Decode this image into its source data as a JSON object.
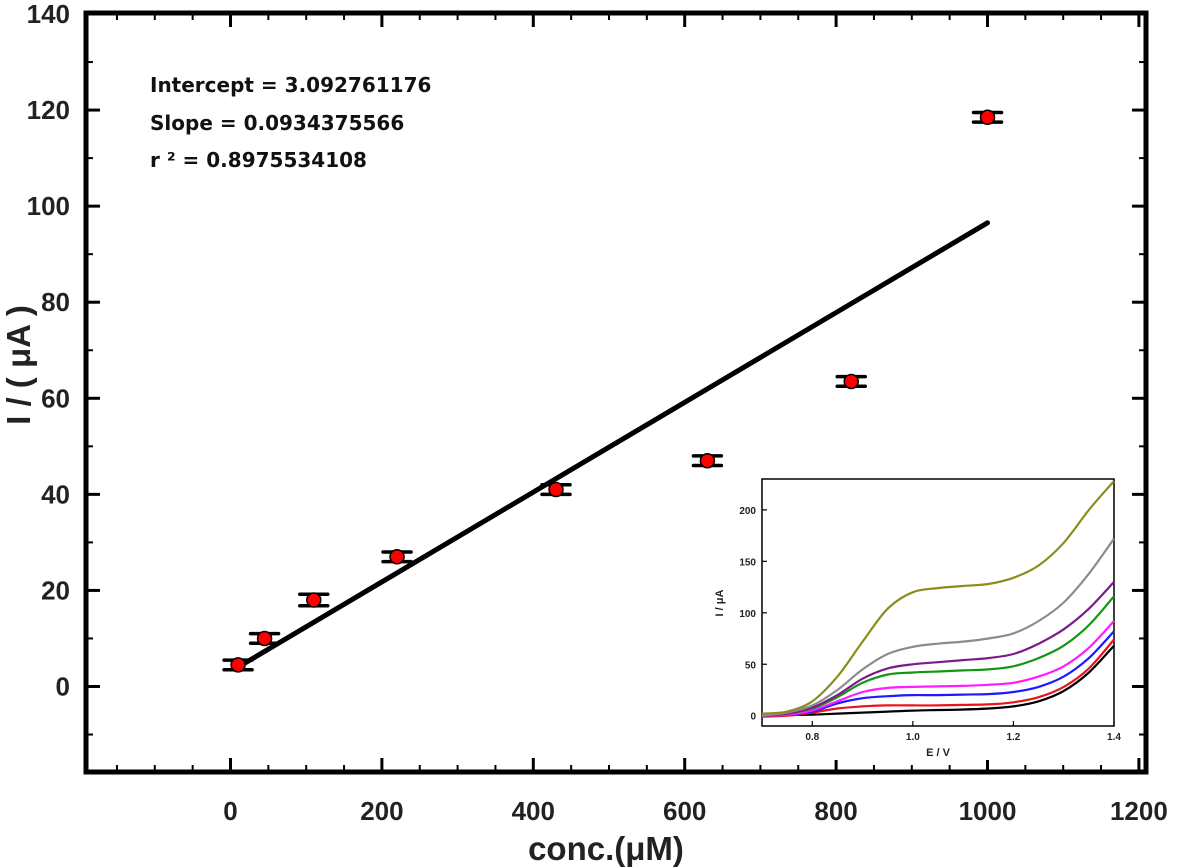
{
  "chart_data": [
    {
      "type": "scatter",
      "xlabel": "conc.(μM)",
      "ylabel": "I / ( μA )",
      "xlim": [
        -150,
        1200
      ],
      "ylim": [
        -18,
        140
      ],
      "xticks": [
        0,
        200,
        400,
        600,
        800,
        1000,
        1200
      ],
      "yticks": [
        0,
        20,
        40,
        60,
        80,
        100,
        120,
        140
      ],
      "points": [
        {
          "x": 10,
          "y": 4.5,
          "err": 1.0
        },
        {
          "x": 45,
          "y": 10,
          "err": 1.0
        },
        {
          "x": 110,
          "y": 18,
          "err": 1.2
        },
        {
          "x": 220,
          "y": 27,
          "err": 1.0
        },
        {
          "x": 430,
          "y": 41,
          "err": 1.0
        },
        {
          "x": 630,
          "y": 47,
          "err": 1.0
        },
        {
          "x": 820,
          "y": 63.5,
          "err": 1.0
        },
        {
          "x": 1000,
          "y": 118.5,
          "err": 1.0
        }
      ],
      "fit": {
        "intercept": 3.092761176,
        "slope": 0.0934375566,
        "x_range": [
          10,
          1000
        ]
      },
      "marker_color": "#ff0000",
      "errorbar_color": "#000000",
      "fit_color": "#000000",
      "annotations": {
        "intercept": "Intercept = 3.092761176",
        "slope": "Slope = 0.0934375566",
        "r2": "r ² = 0.8975534108"
      }
    },
    {
      "type": "line",
      "inset": true,
      "xlabel": "E / V",
      "ylabel": "I / μA",
      "xlim": [
        0.7,
        1.4
      ],
      "ylim": [
        -10,
        230
      ],
      "xticks": [
        0.8,
        1.0,
        1.2,
        1.4
      ],
      "yticks": [
        0,
        50,
        100,
        150,
        200
      ],
      "series": [
        {
          "name": "black",
          "color": "#000000",
          "x": [
            0.7,
            0.75,
            0.8,
            0.85,
            0.9,
            0.95,
            1.0,
            1.05,
            1.1,
            1.15,
            1.2,
            1.25,
            1.3,
            1.35,
            1.4
          ],
          "y": [
            0,
            0.5,
            1,
            2,
            3,
            4,
            5,
            5.5,
            6,
            7,
            9,
            14,
            24,
            42,
            68
          ]
        },
        {
          "name": "red",
          "color": "#e8141c",
          "x": [
            0.7,
            0.75,
            0.8,
            0.85,
            0.9,
            0.95,
            1.0,
            1.05,
            1.1,
            1.15,
            1.2,
            1.25,
            1.3,
            1.35,
            1.4
          ],
          "y": [
            -1,
            0,
            3,
            7,
            9,
            10,
            10,
            10,
            10.5,
            11,
            13,
            18,
            28,
            46,
            74
          ]
        },
        {
          "name": "blue",
          "color": "#1a1aff",
          "x": [
            0.7,
            0.75,
            0.8,
            0.85,
            0.9,
            0.95,
            1.0,
            1.05,
            1.1,
            1.15,
            1.2,
            1.25,
            1.3,
            1.35,
            1.4
          ],
          "y": [
            0,
            1,
            4,
            12,
            17,
            19,
            20,
            20,
            20.5,
            21,
            23,
            28,
            38,
            56,
            82
          ]
        },
        {
          "name": "magenta",
          "color": "#ff1aff",
          "x": [
            0.7,
            0.75,
            0.8,
            0.85,
            0.9,
            0.95,
            1.0,
            1.05,
            1.1,
            1.15,
            1.2,
            1.25,
            1.3,
            1.35,
            1.4
          ],
          "y": [
            0,
            1,
            5,
            14,
            23,
            27,
            28,
            28.5,
            29,
            30,
            32,
            38,
            48,
            66,
            92
          ]
        },
        {
          "name": "green",
          "color": "#149614",
          "x": [
            0.7,
            0.75,
            0.8,
            0.85,
            0.9,
            0.95,
            1.0,
            1.05,
            1.1,
            1.15,
            1.2,
            1.25,
            1.3,
            1.35,
            1.4
          ],
          "y": [
            0,
            2,
            7,
            18,
            32,
            40,
            42,
            43,
            44,
            45,
            48,
            56,
            68,
            88,
            116
          ]
        },
        {
          "name": "purple",
          "color": "#7a1a8c",
          "x": [
            0.7,
            0.75,
            0.8,
            0.85,
            0.9,
            0.95,
            1.0,
            1.05,
            1.1,
            1.15,
            1.2,
            1.25,
            1.3,
            1.35,
            1.4
          ],
          "y": [
            0,
            2,
            8,
            20,
            36,
            46,
            50,
            52,
            54,
            56,
            60,
            70,
            84,
            104,
            130
          ]
        },
        {
          "name": "gray",
          "color": "#8c8c8c",
          "x": [
            0.7,
            0.75,
            0.8,
            0.85,
            0.9,
            0.95,
            1.0,
            1.05,
            1.1,
            1.15,
            1.2,
            1.25,
            1.3,
            1.35,
            1.4
          ],
          "y": [
            0,
            3,
            10,
            25,
            45,
            60,
            67,
            70,
            72,
            75,
            80,
            92,
            110,
            138,
            172
          ]
        },
        {
          "name": "olive",
          "color": "#8c8c1a",
          "x": [
            0.7,
            0.75,
            0.8,
            0.85,
            0.9,
            0.95,
            1.0,
            1.05,
            1.1,
            1.15,
            1.2,
            1.25,
            1.3,
            1.35,
            1.4
          ],
          "y": [
            2,
            4,
            14,
            38,
            72,
            104,
            120,
            124,
            126,
            128,
            134,
            146,
            168,
            200,
            228
          ]
        }
      ]
    }
  ]
}
